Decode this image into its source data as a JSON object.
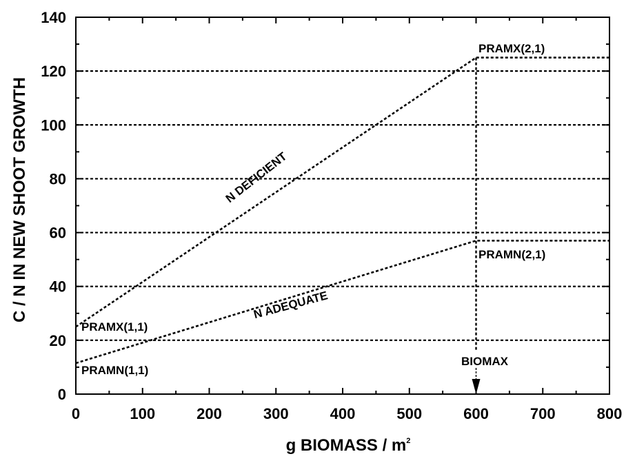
{
  "chart_data": {
    "type": "line",
    "xlabel": "g BIOMASS / m",
    "xlabel_sup": "2",
    "ylabel": "C / N  IN NEW SHOOT GROWTH",
    "xlim": [
      0,
      800
    ],
    "ylim": [
      0,
      140
    ],
    "x_ticks": [
      "0",
      "100",
      "200",
      "300",
      "400",
      "500",
      "600",
      "700",
      "800"
    ],
    "y_ticks": [
      "0",
      "20",
      "40",
      "60",
      "80",
      "100",
      "120",
      "140"
    ],
    "grid": "horizontal dashed at y ticks",
    "series": [
      {
        "name": "N DEFICIENT",
        "x": [
          0,
          600,
          800
        ],
        "y": [
          25,
          125,
          125
        ]
      },
      {
        "name": "N ADEQUATE",
        "x": [
          0,
          600,
          800
        ],
        "y": [
          11.5,
          57,
          57
        ]
      }
    ],
    "annotations": {
      "pramx_1_1": "PRAMX(1,1)",
      "pramn_1_1": "PRAMN(1,1)",
      "pramx_2_1": "PRAMX(2,1)",
      "pramn_2_1": "PRAMN(2,1)",
      "biomax": "BIOMAX"
    },
    "biomax_x": 600
  }
}
